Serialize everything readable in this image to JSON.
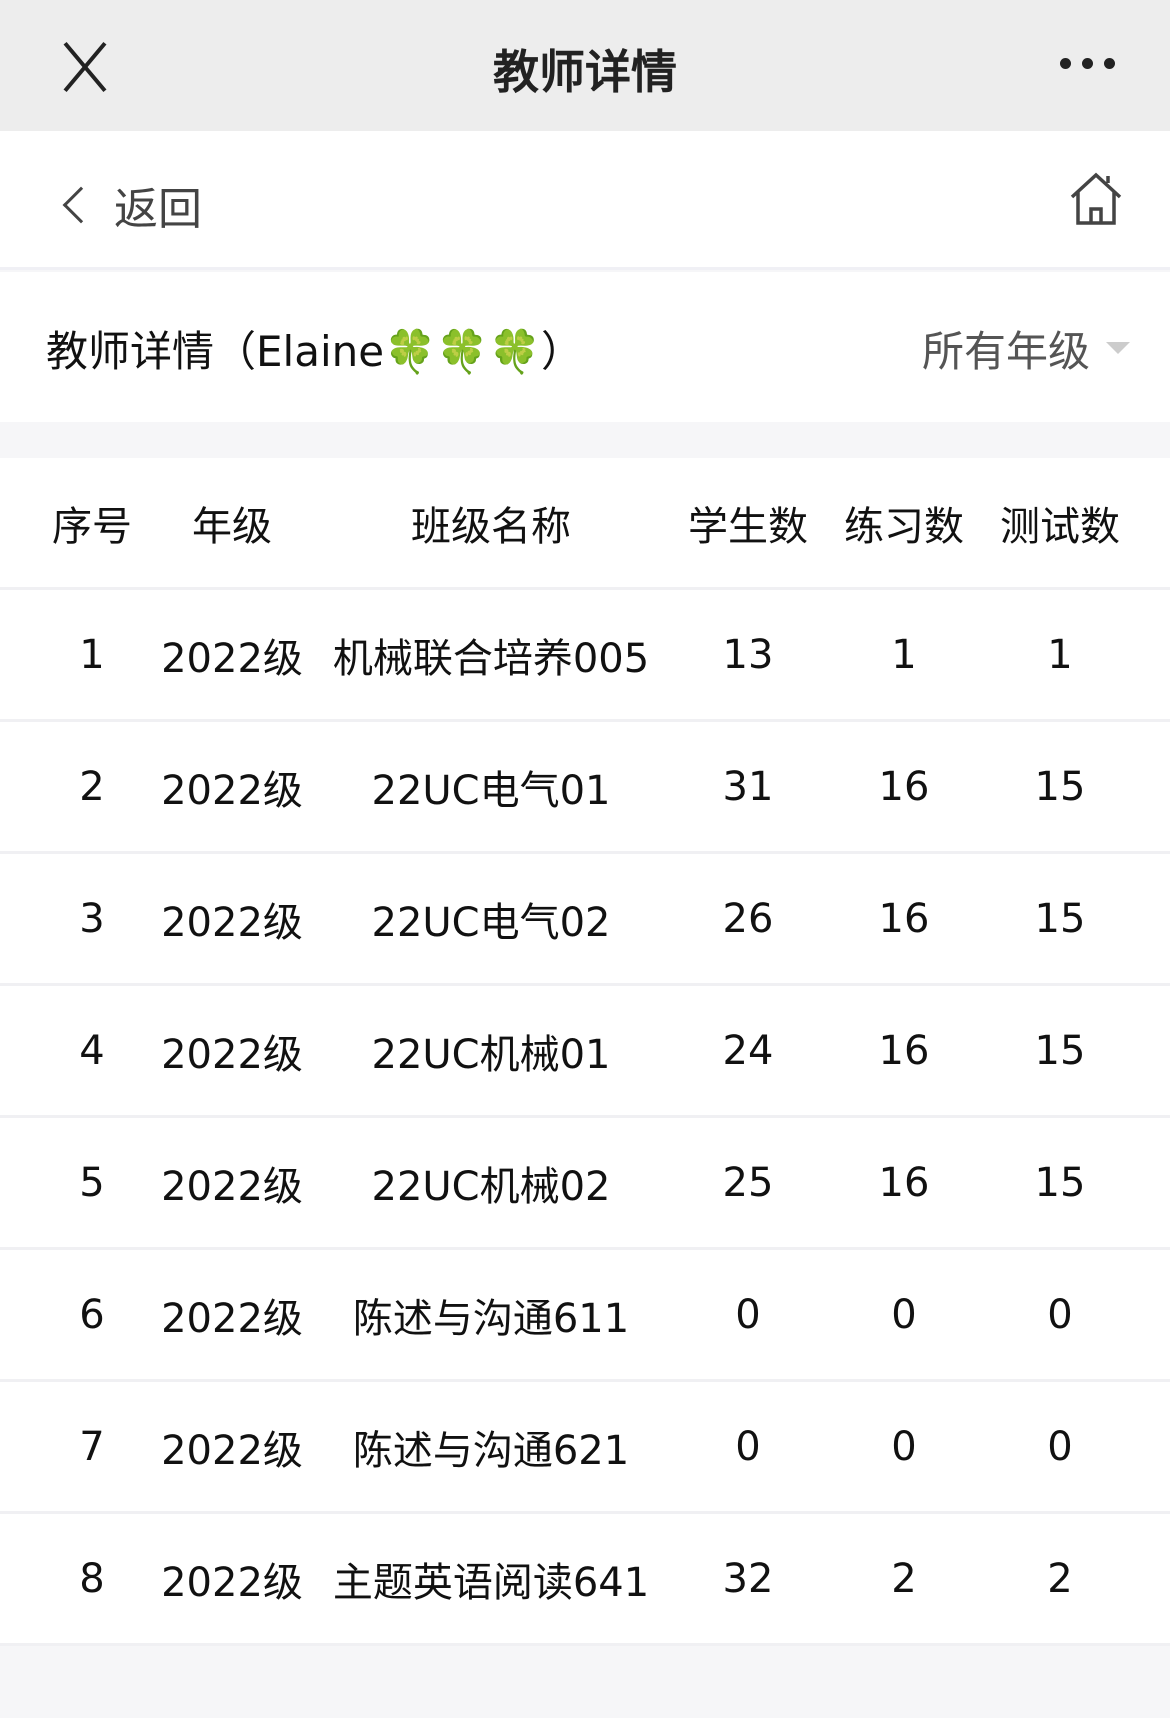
{
  "topbar": {
    "title": "教师详情"
  },
  "nav": {
    "back_label": "返回"
  },
  "header": {
    "teacher_title": "教师详情（Elaine🍀🍀🍀）",
    "grade_filter": "所有年级"
  },
  "table": {
    "columns": [
      "序号",
      "年级",
      "班级名称",
      "学生数",
      "练习数",
      "测试数"
    ],
    "rows": [
      [
        "1",
        "2022级",
        "机械联合培养005",
        "13",
        "1",
        "1"
      ],
      [
        "2",
        "2022级",
        "22UC电气01",
        "31",
        "16",
        "15"
      ],
      [
        "3",
        "2022级",
        "22UC电气02",
        "26",
        "16",
        "15"
      ],
      [
        "4",
        "2022级",
        "22UC机械01",
        "24",
        "16",
        "15"
      ],
      [
        "5",
        "2022级",
        "22UC机械02",
        "25",
        "16",
        "15"
      ],
      [
        "6",
        "2022级",
        "陈述与沟通611",
        "0",
        "0",
        "0"
      ],
      [
        "7",
        "2022级",
        "陈述与沟通621",
        "0",
        "0",
        "0"
      ],
      [
        "8",
        "2022级",
        "主题英语阅读641",
        "32",
        "2",
        "2"
      ]
    ]
  }
}
